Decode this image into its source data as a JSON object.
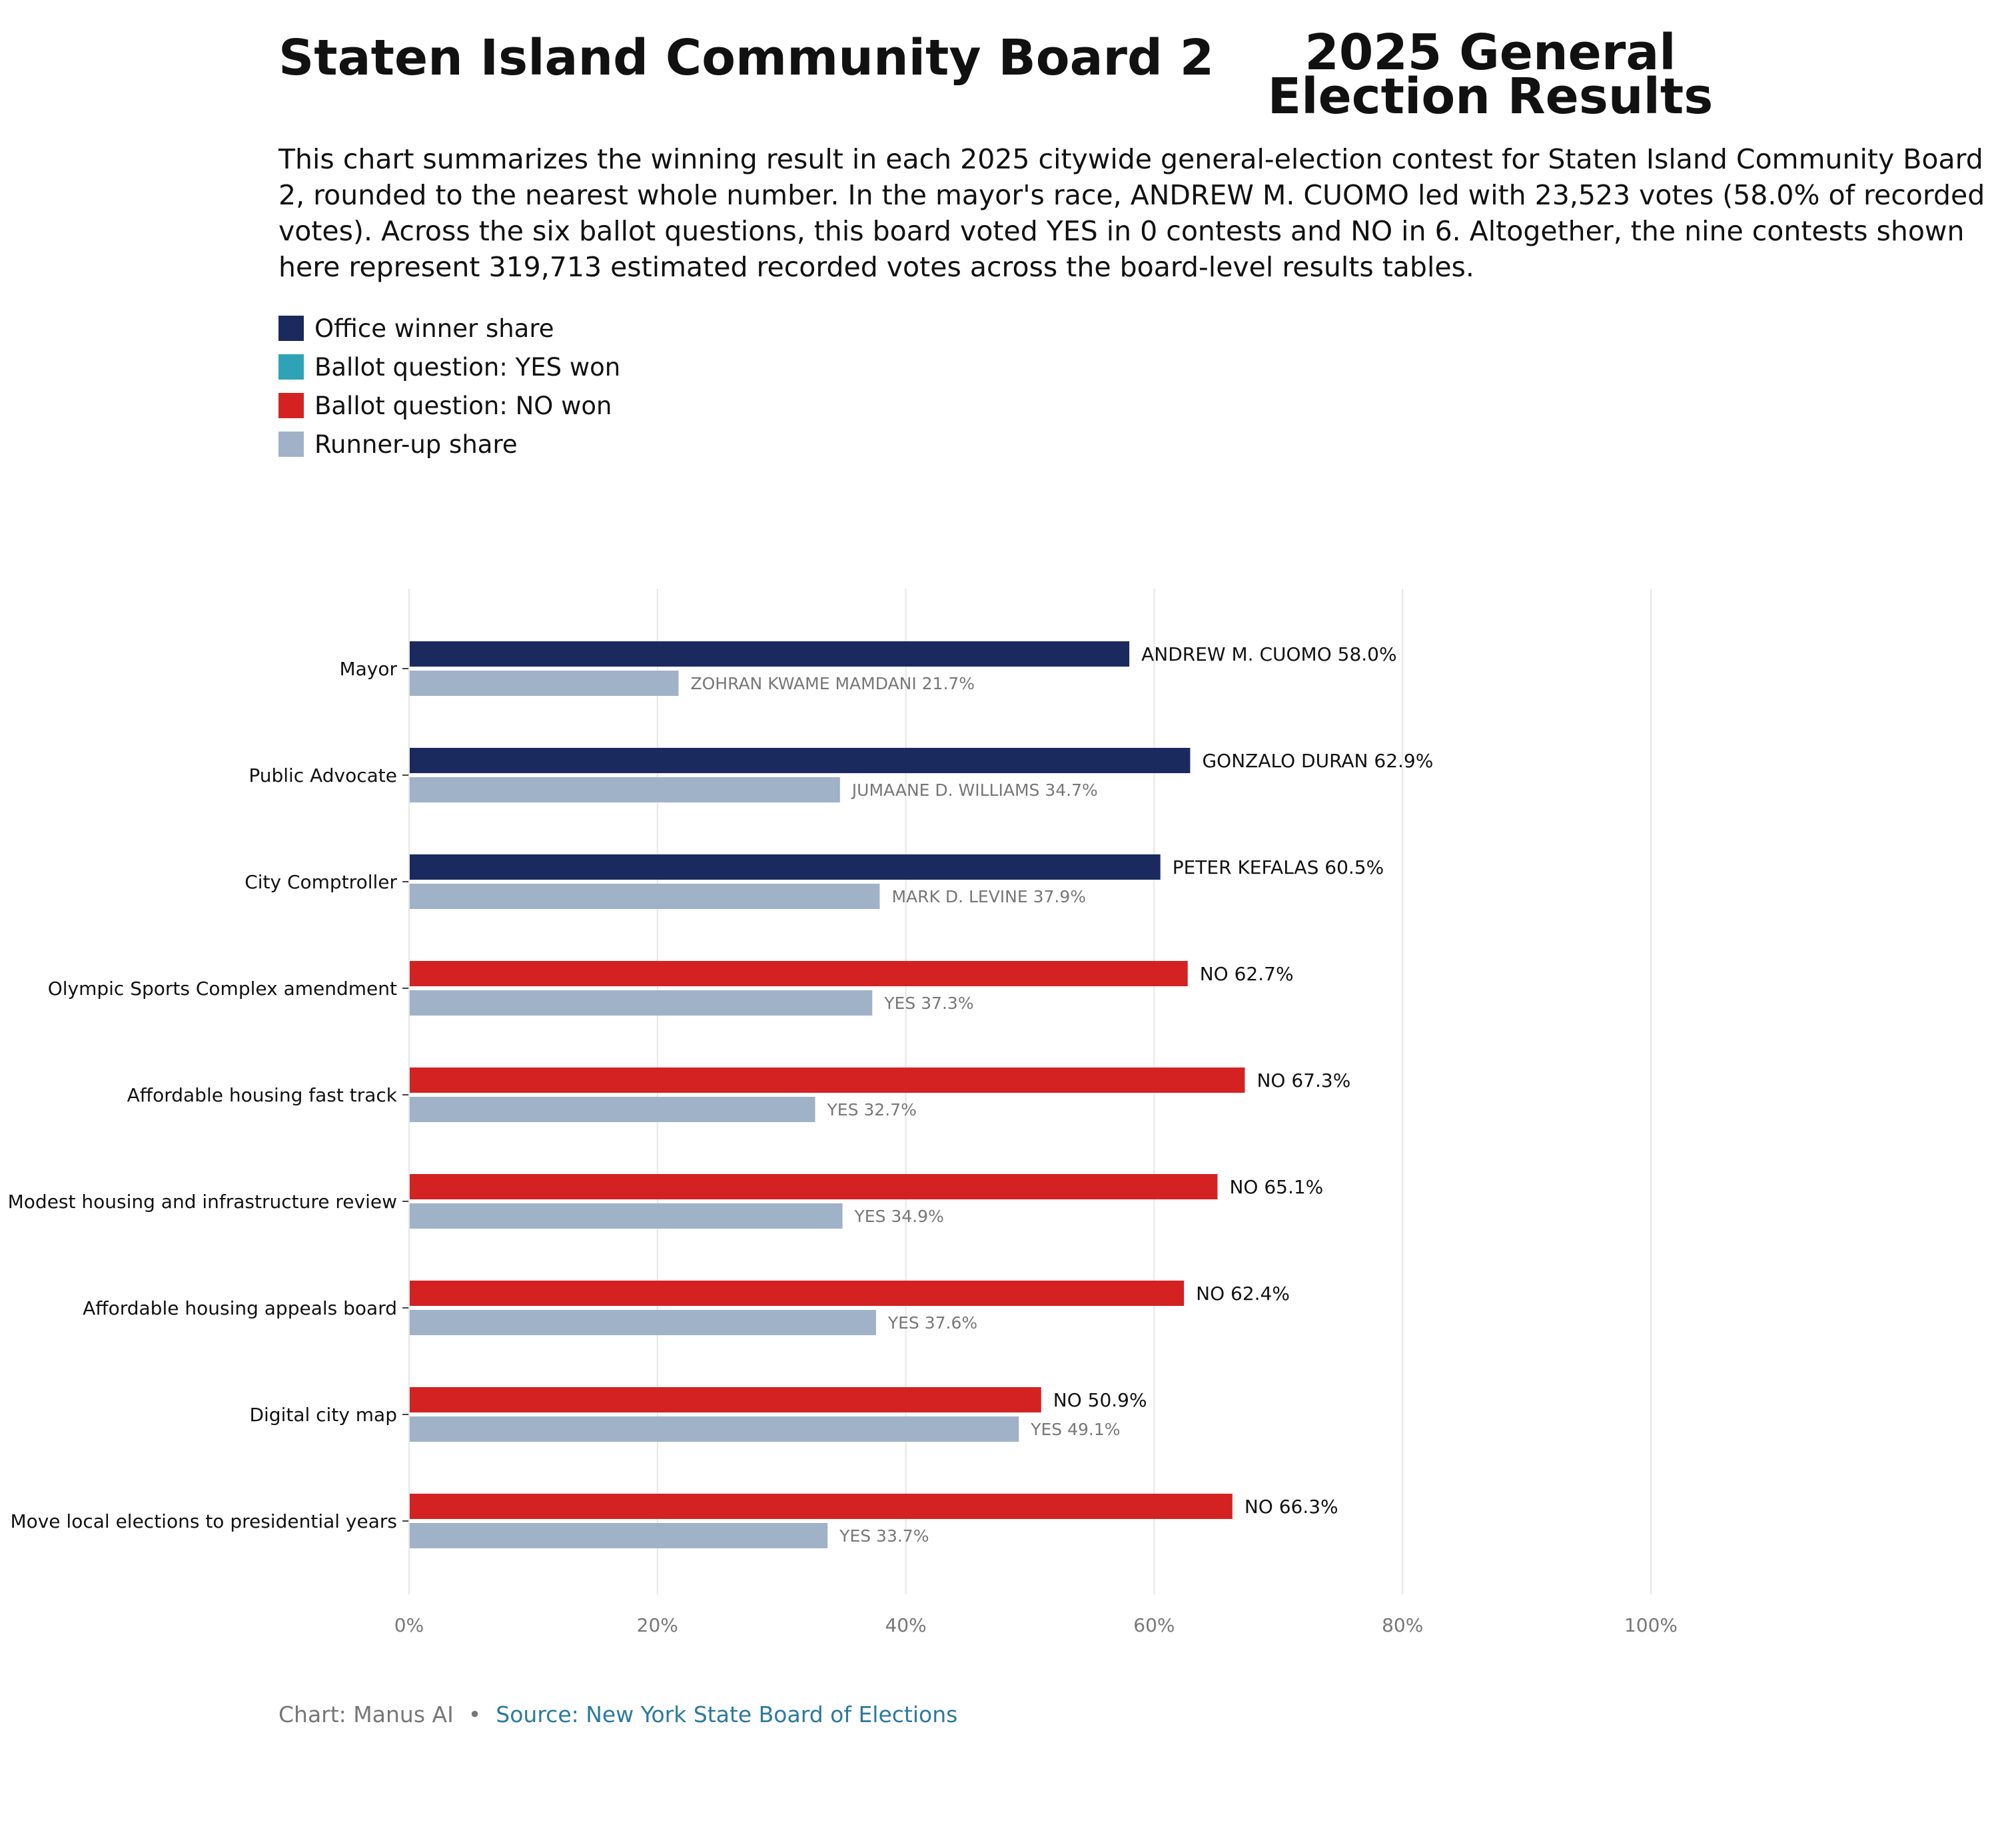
{
  "header": {
    "title_part1": "Staten Island Community Board 2",
    "title_part2": "2025 General Election Results",
    "description": "This chart summarizes the winning result in each 2025 citywide general-election contest for Staten Island Community Board 2, rounded to the nearest whole number. In the mayor's race, ANDREW M. CUOMO led with 23,523 votes (58.0% of recorded votes). Across the six ballot questions, this board voted YES in 0 contests and NO in 6. Altogether, the nine contests shown here represent 319,713 estimated recorded votes across the board-level results tables."
  },
  "legend": [
    {
      "label": "Office winner share",
      "color": "#1b2a5e"
    },
    {
      "label": "Ballot question: YES won",
      "color": "#2ea3b7"
    },
    {
      "label": "Ballot question: NO won",
      "color": "#d42222"
    },
    {
      "label": "Runner-up share",
      "color": "#a0b2c8"
    }
  ],
  "chart_data": {
    "type": "bar",
    "orientation": "horizontal",
    "categories": [
      "Mayor",
      "Public Advocate",
      "City Comptroller",
      "Olympic Sports Complex amendment",
      "Affordable housing fast track",
      "Modest housing and infrastructure review",
      "Affordable housing appeals board",
      "Digital city map",
      "Move local elections to presidential years"
    ],
    "series": [
      {
        "name": "Winner",
        "values": [
          58.0,
          62.9,
          60.5,
          62.7,
          67.3,
          65.1,
          62.4,
          50.9,
          66.3
        ],
        "labels": [
          "ANDREW M. CUOMO 58.0%",
          "GONZALO DURAN 62.9%",
          "PETER KEFALAS 60.5%",
          "NO 62.7%",
          "NO 67.3%",
          "NO 65.1%",
          "NO 62.4%",
          "NO 50.9%",
          "NO 66.3%"
        ],
        "kinds": [
          "office",
          "office",
          "office",
          "no",
          "no",
          "no",
          "no",
          "no",
          "no"
        ]
      },
      {
        "name": "Runner-up",
        "values": [
          21.7,
          34.7,
          37.9,
          37.3,
          32.7,
          34.9,
          37.6,
          49.1,
          33.7
        ],
        "labels": [
          "ZOHRAN KWAME MAMDANI 21.7%",
          "JUMAANE D. WILLIAMS 34.7%",
          "MARK D. LEVINE 37.9%",
          "YES 37.3%",
          "YES 32.7%",
          "YES 34.9%",
          "YES 37.6%",
          "YES 49.1%",
          "YES 33.7%"
        ]
      }
    ],
    "xlim": [
      0,
      100
    ],
    "xticks": [
      0,
      20,
      40,
      60,
      80,
      100
    ],
    "xtick_labels": [
      "0%",
      "20%",
      "40%",
      "60%",
      "80%",
      "100%"
    ],
    "grid": "vertical",
    "colors": {
      "office": "#1b2a5e",
      "yes": "#2ea3b7",
      "no": "#d42222",
      "runner_up": "#a0b2c8",
      "grid": "#e6e6e6",
      "tick_text": "#777777",
      "label_text": "#111111",
      "runner_label_text": "#777777"
    }
  },
  "footer": {
    "credit": "Chart: Manus AI",
    "separator": "•",
    "source": "Source: New York State Board of Elections"
  }
}
